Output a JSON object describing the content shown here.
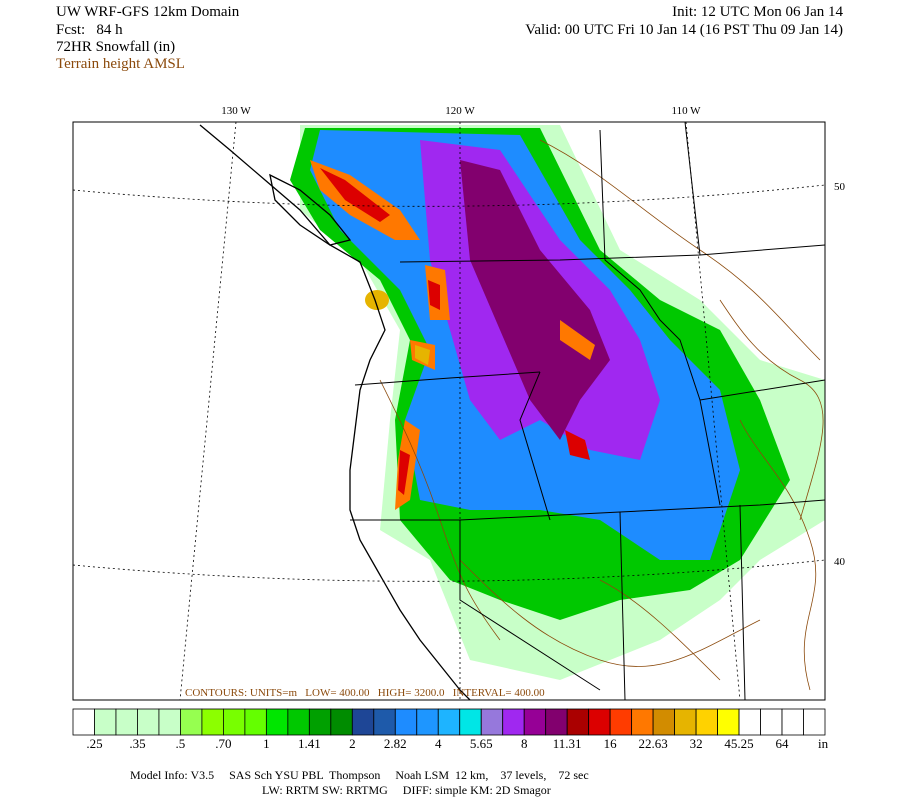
{
  "header": {
    "title": "UW WRF-GFS 12km Domain",
    "forecast": "Fcst:   84 h",
    "field": "72HR Snowfall (in)",
    "contour_field": "Terrain height AMSL",
    "init": "Init: 12 UTC Mon 06 Jan 14",
    "valid": "Valid: 00 UTC Fri 10 Jan 14 (16 PST Thu 09 Jan 14)"
  },
  "map": {
    "longitude_labels": [
      "130 W",
      "120 W",
      "110 W"
    ],
    "latitude_labels": [
      "50",
      "40"
    ],
    "contour_info": "CONTOURS: UNITS=m   LOW= 400.00   HIGH= 3200.0   INTERVAL= 400.00"
  },
  "colorbar": {
    "colors": [
      "#ffffff",
      "#c8ffc8",
      "#c8ffc8",
      "#c8ffc8",
      "#c8ffc8",
      "#96ff50",
      "#8cff00",
      "#78ff00",
      "#64ff00",
      "#00e600",
      "#00c800",
      "#00a000",
      "#008c00",
      "#1e4696",
      "#1e5aaa",
      "#1e8cff",
      "#1e96ff",
      "#1eb4ff",
      "#00e6e6",
      "#9678dc",
      "#a028f0",
      "#960096",
      "#82006e",
      "#aa0000",
      "#dc0000",
      "#ff3c00",
      "#ff7800",
      "#d28c00",
      "#e6b400",
      "#ffd200",
      "#ffff00",
      "#ffffff",
      "#ffffff",
      "#ffffff",
      "#ffffff"
    ],
    "labels": [
      ".25",
      ".35",
      ".5",
      ".70",
      "1",
      "1.41",
      "2",
      "2.82",
      "4",
      "5.65",
      "8",
      "11.31",
      "16",
      "22.63",
      "32",
      "45.25",
      "64"
    ],
    "unit": "in"
  },
  "footer": {
    "line1": "Model Info: V3.5     SAS Sch YSU PBL  Thompson     Noah LSM  12 km,    37 levels,    72 sec",
    "line2": "LW: RRTM SW: RRTMG     DIFF: simple KM: 2D Smagor"
  }
}
